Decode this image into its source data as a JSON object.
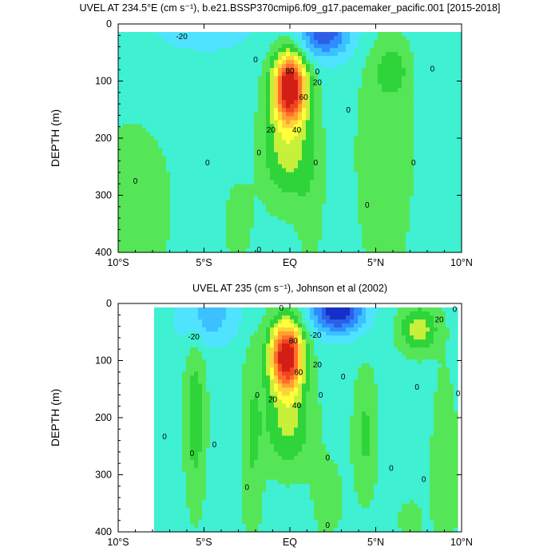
{
  "chart_data": [
    {
      "type": "contour",
      "title": "UVEL AT 234.5°E (cm s⁻¹), b.e21.BSSP370cmip6.f09_g17.pacemaker_pacific.001 [2015-2018]",
      "ylabel": "DEPTH (m)",
      "xlabel": "",
      "xticks": [
        "10°S",
        "5°S",
        "EQ",
        "5°N",
        "10°N"
      ],
      "xlim": [
        -10,
        10
      ],
      "yticks": [
        "0",
        "100",
        "200",
        "300",
        "400"
      ],
      "ylim": [
        0,
        400
      ],
      "y_reversed": true,
      "grid": false,
      "contour_interval": 10,
      "undercurrent_core": {
        "lat": 0,
        "depth": 110,
        "max_speed": 90
      },
      "surface_westward_core": {
        "lat": 2,
        "depth": 20,
        "min_speed": -40
      },
      "contour_labels": [
        {
          "text": "-20",
          "lat": -6.3,
          "depth": 22
        },
        {
          "text": "0",
          "lat": -2.0,
          "depth": 62
        },
        {
          "text": "0",
          "lat": 1.6,
          "depth": 83
        },
        {
          "text": "20",
          "lat": 1.6,
          "depth": 102
        },
        {
          "text": "80",
          "lat": 0.0,
          "depth": 82
        },
        {
          "text": "60",
          "lat": 0.8,
          "depth": 128
        },
        {
          "text": "20",
          "lat": -1.1,
          "depth": 185
        },
        {
          "text": "40",
          "lat": 0.4,
          "depth": 185
        },
        {
          "text": "0",
          "lat": 3.4,
          "depth": 150
        },
        {
          "text": "0",
          "lat": -1.8,
          "depth": 225
        },
        {
          "text": "0",
          "lat": -4.8,
          "depth": 243
        },
        {
          "text": "0",
          "lat": -9.0,
          "depth": 275
        },
        {
          "text": "0",
          "lat": 1.5,
          "depth": 243
        },
        {
          "text": "0",
          "lat": 7.2,
          "depth": 243
        },
        {
          "text": "0",
          "lat": 4.5,
          "depth": 317
        },
        {
          "text": "0",
          "lat": 8.3,
          "depth": 78
        },
        {
          "text": "0",
          "lat": -1.8,
          "depth": 395
        }
      ]
    },
    {
      "type": "contour",
      "title": "UVEL AT 235 (cm s⁻¹), Johnson et al (2002)",
      "ylabel": "DEPTH (m)",
      "xlabel": "",
      "xticks": [
        "10°S",
        "5°S",
        "EQ",
        "5°N",
        "10°N"
      ],
      "xlim": [
        -10,
        10
      ],
      "yticks": [
        "0",
        "100",
        "200",
        "300",
        "400"
      ],
      "ylim": [
        0,
        400
      ],
      "y_reversed": true,
      "grid": false,
      "contour_interval": 10,
      "data_lat_range": [
        -8,
        9.7
      ],
      "undercurrent_core": {
        "lat": -0.2,
        "depth": 90,
        "max_speed": 90
      },
      "surface_westward_core": {
        "lat": 2.8,
        "depth": 15,
        "min_speed": -50
      },
      "contour_labels": [
        {
          "text": "-20",
          "lat": -5.6,
          "depth": 58
        },
        {
          "text": "0",
          "lat": -0.5,
          "depth": 8
        },
        {
          "text": "-20",
          "lat": 1.5,
          "depth": 55
        },
        {
          "text": "20",
          "lat": 8.7,
          "depth": 28
        },
        {
          "text": "0",
          "lat": 9.6,
          "depth": 10
        },
        {
          "text": "80",
          "lat": 0.2,
          "depth": 65
        },
        {
          "text": "20",
          "lat": 1.6,
          "depth": 107
        },
        {
          "text": "60",
          "lat": 0.5,
          "depth": 120
        },
        {
          "text": "20",
          "lat": -1.0,
          "depth": 168
        },
        {
          "text": "40",
          "lat": 0.4,
          "depth": 178
        },
        {
          "text": "0",
          "lat": -1.9,
          "depth": 160
        },
        {
          "text": "0",
          "lat": 1.8,
          "depth": 160
        },
        {
          "text": "0",
          "lat": 3.1,
          "depth": 128
        },
        {
          "text": "0",
          "lat": 7.4,
          "depth": 146
        },
        {
          "text": "0",
          "lat": 9.8,
          "depth": 157
        },
        {
          "text": "0",
          "lat": -7.3,
          "depth": 233
        },
        {
          "text": "0",
          "lat": -4.4,
          "depth": 247
        },
        {
          "text": "0",
          "lat": -5.7,
          "depth": 262
        },
        {
          "text": "0",
          "lat": 2.2,
          "depth": 270
        },
        {
          "text": "0",
          "lat": 5.9,
          "depth": 288
        },
        {
          "text": "0",
          "lat": 7.8,
          "depth": 308
        },
        {
          "text": "0",
          "lat": -2.5,
          "depth": 322
        },
        {
          "text": "0",
          "lat": 2.2,
          "depth": 388
        }
      ]
    }
  ]
}
